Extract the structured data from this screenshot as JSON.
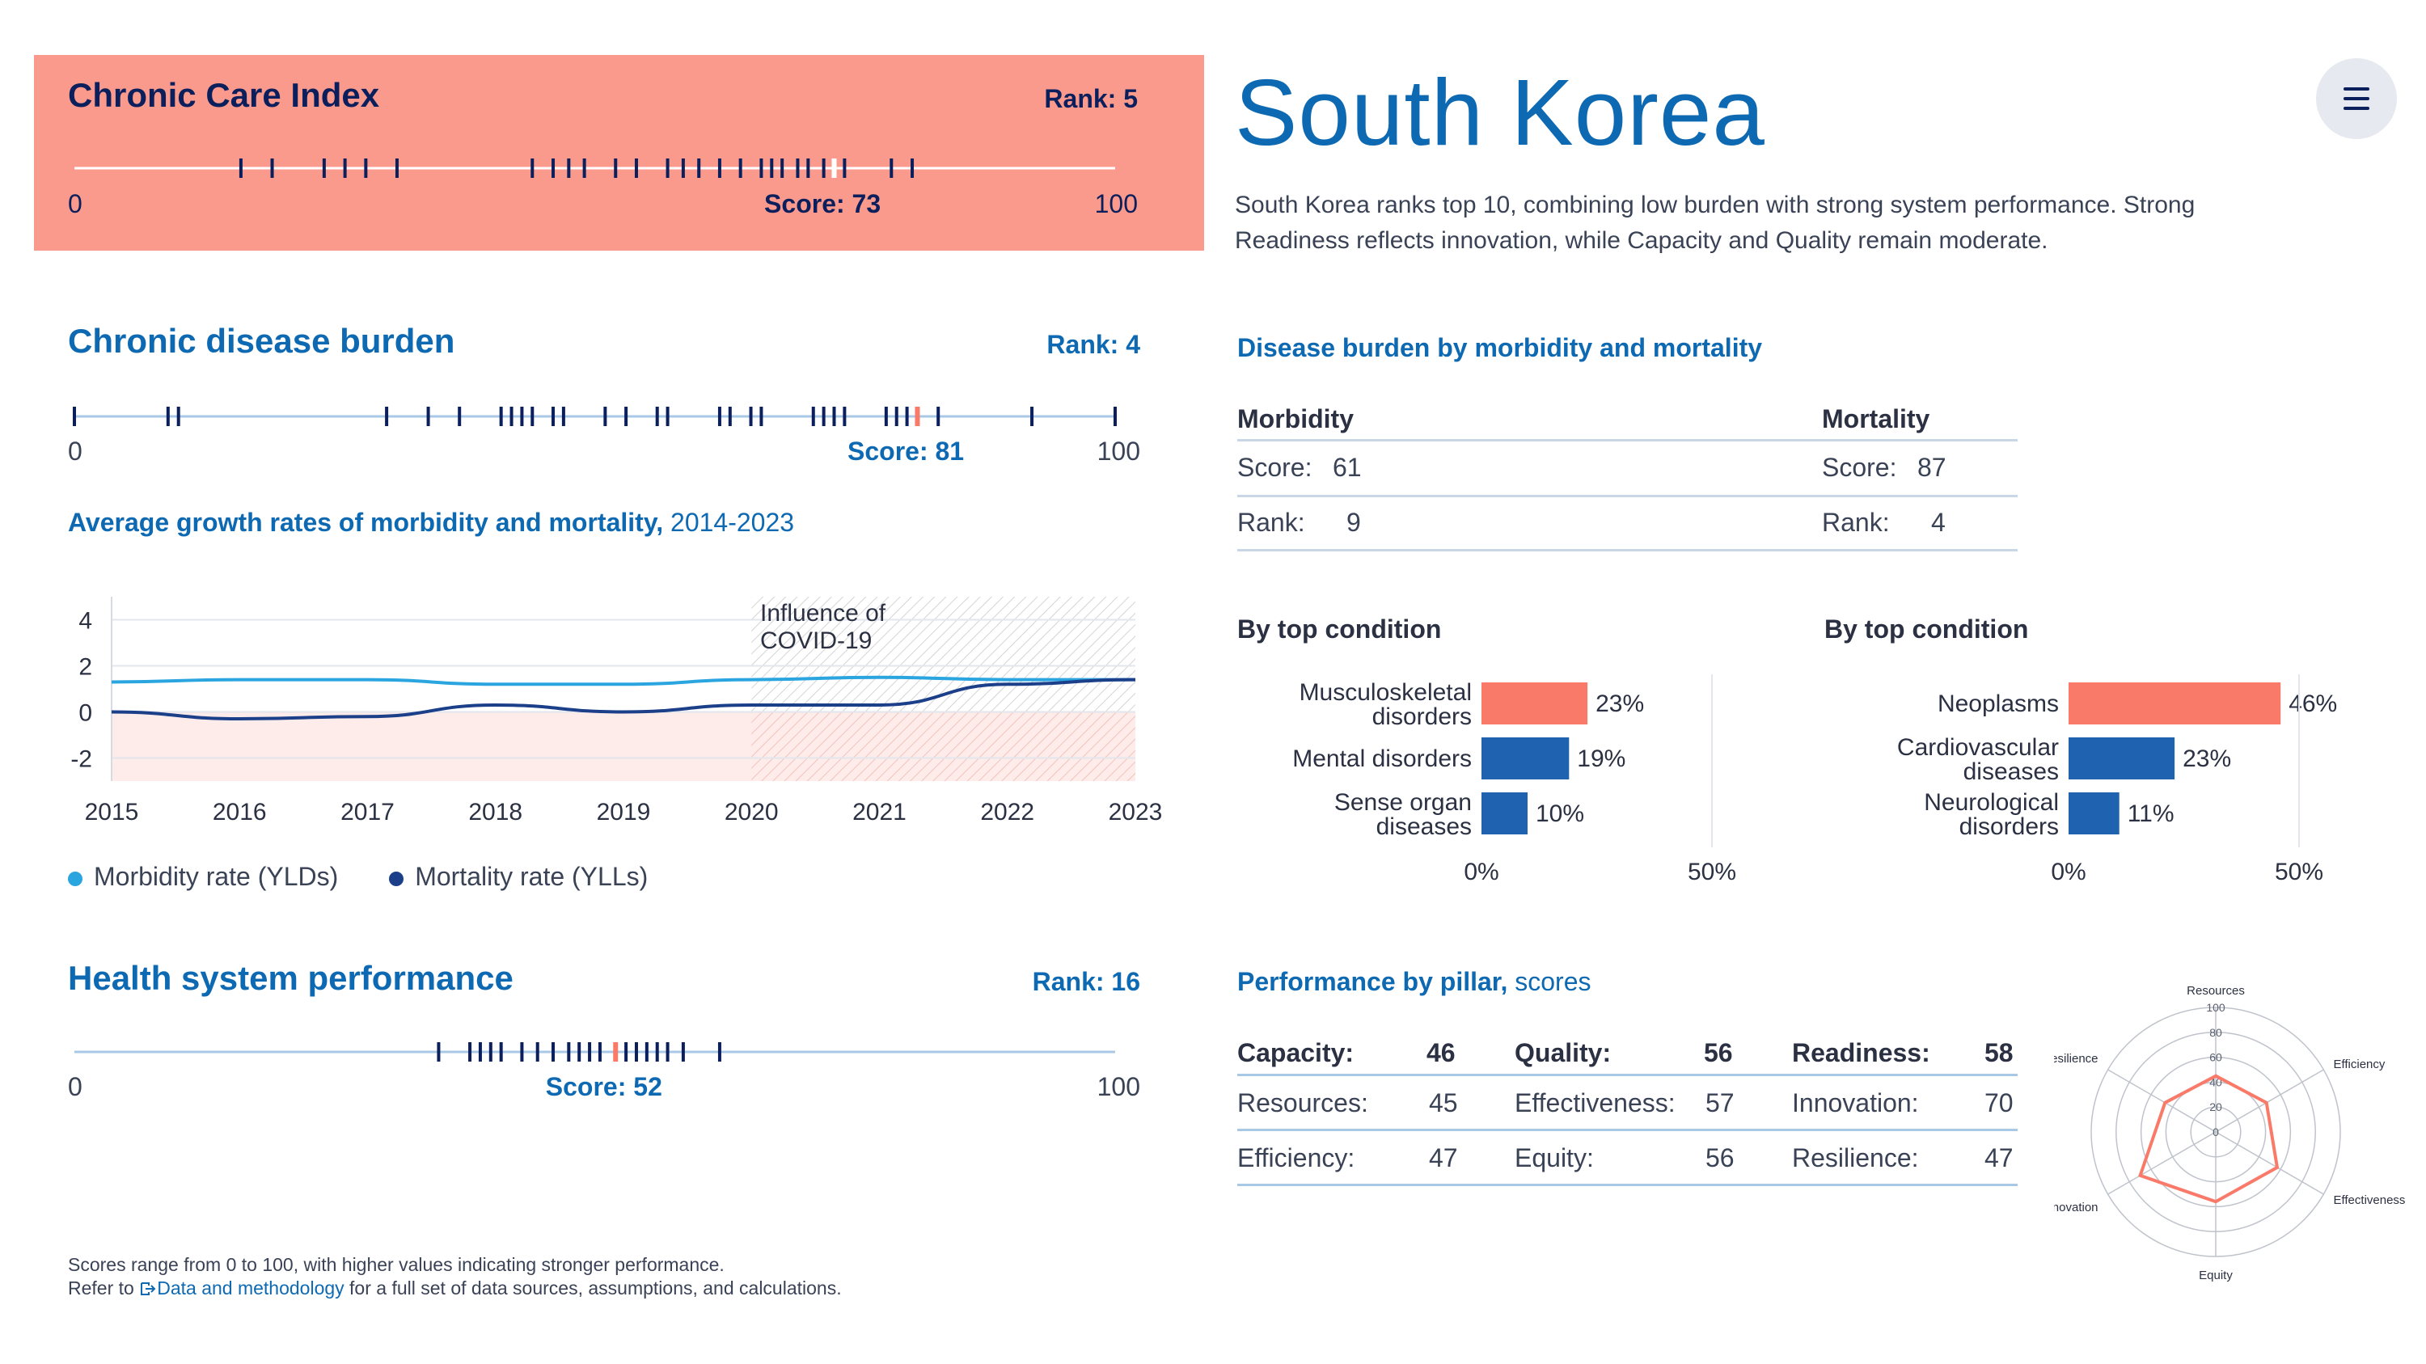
{
  "colors": {
    "accent_blue": "#0e69b3",
    "navy": "#0b1f5c",
    "coral": "#fa7a6a",
    "header_bg": "#fa9a8c",
    "morbidity_line": "#2aa5e0",
    "mortality_line": "#1c3f8a",
    "bar_blue": "#1f63b0"
  },
  "country": "South Korea",
  "summary": "South Korea ranks top 10, combining low burden with strong system performance. Strong Readiness reflects innovation, while Capacity and Quality remain moderate.",
  "menu": {
    "icon": "hamburger-menu-icon"
  },
  "cci": {
    "title": "Chronic Care Index",
    "rank": "Rank: 5",
    "score_label": "Score: 73",
    "score": 73,
    "min": "0",
    "max": "100",
    "others": [
      16,
      19,
      24,
      26,
      28,
      31,
      44,
      46,
      47.5,
      49,
      52,
      54,
      57,
      58.5,
      60,
      62,
      64,
      66,
      67,
      68,
      69.5,
      70.5,
      72,
      74,
      78.5,
      80.5
    ]
  },
  "burden": {
    "title": "Chronic disease burden",
    "rank": "Rank: 4",
    "score_label": "Score: 81",
    "score": 81,
    "min": "0",
    "max": "100",
    "others": [
      0,
      9,
      10,
      30,
      34,
      37,
      41,
      42,
      43,
      44,
      46,
      47,
      51,
      53,
      56,
      57,
      62,
      63,
      65,
      66,
      71,
      72,
      73,
      74,
      78,
      79,
      80,
      83,
      92,
      100
    ]
  },
  "growth": {
    "title": "Average growth rates of morbidity and mortality,",
    "period": "2014-2023",
    "covid_label_1": "Influence of",
    "covid_label_2": "COVID-19",
    "legend_morbidity": "Morbidity rate (YLDs)",
    "legend_mortality": "Mortality rate (YLLs)"
  },
  "performance": {
    "title": "Health system performance",
    "rank": "Rank: 16",
    "score_label": "Score: 52",
    "score": 52,
    "min": "0",
    "max": "100",
    "others": [
      35,
      38,
      39,
      40,
      41,
      43,
      44.5,
      46,
      47.5,
      48.5,
      49.5,
      50.5,
      53,
      54,
      55,
      56,
      57,
      58.5,
      62
    ]
  },
  "burden_detail": {
    "title": "Disease burden by morbidity and mortality",
    "morbidity": {
      "header": "Morbidity",
      "score_label": "Score:",
      "score": "61",
      "rank_label": "Rank:",
      "rank": "9"
    },
    "mortality": {
      "header": "Mortality",
      "score_label": "Score:",
      "score": "87",
      "rank_label": "Rank:",
      "rank": "4"
    }
  },
  "conditions_left": {
    "title": "By top condition",
    "axis_min": "0%",
    "axis_max": "50%",
    "items": [
      {
        "line1": "Musculoskeletal",
        "line2": "disorders",
        "value": 23,
        "label": "23%",
        "highlight": true
      },
      {
        "line1": "Mental disorders",
        "line2": "",
        "value": 19,
        "label": "19%",
        "highlight": false
      },
      {
        "line1": "Sense organ",
        "line2": "diseases",
        "value": 10,
        "label": "10%",
        "highlight": false
      }
    ]
  },
  "conditions_right": {
    "title": "By top condition",
    "axis_min": "0%",
    "axis_max": "50%",
    "items": [
      {
        "line1": "Neoplasms",
        "line2": "",
        "value": 46,
        "label": "46%",
        "highlight": true
      },
      {
        "line1": "Cardiovascular",
        "line2": "diseases",
        "value": 23,
        "label": "23%",
        "highlight": false
      },
      {
        "line1": "Neurological",
        "line2": "disorders",
        "value": 11,
        "label": "11%",
        "highlight": false
      }
    ]
  },
  "pillars": {
    "title": "Performance by pillar,",
    "title_light": "scores",
    "capacity": {
      "label": "Capacity:",
      "value": "46"
    },
    "quality": {
      "label": "Quality:",
      "value": "56"
    },
    "readiness": {
      "label": "Readiness:",
      "value": "58"
    },
    "resources": {
      "label": "Resources:",
      "value": "45"
    },
    "effectiveness": {
      "label": "Effectiveness:",
      "value": "57"
    },
    "innovation": {
      "label": "Innovation:",
      "value": "70"
    },
    "efficiency": {
      "label": "Efficiency:",
      "value": "47"
    },
    "equity": {
      "label": "Equity:",
      "value": "56"
    },
    "resilience": {
      "label": "Resilience:",
      "value": "47"
    }
  },
  "radar_ticks": [
    "100",
    "80",
    "60",
    "40",
    "20",
    "0"
  ],
  "footer": {
    "line1": "Scores range from 0 to 100, with higher values indicating stronger performance.",
    "line2_pre": "Refer to",
    "link_icon": "external-link-icon",
    "link": "Data and methodology",
    "line2_post": "for a full set of data sources, assumptions, and calculations."
  },
  "chart_data": [
    {
      "type": "line",
      "title": "Average growth rates of morbidity and mortality, 2014-2023",
      "x": [
        2015,
        2016,
        2017,
        2018,
        2019,
        2020,
        2021,
        2022,
        2023
      ],
      "ylim": [
        -3,
        5
      ],
      "yticks": [
        4,
        2,
        0,
        -2
      ],
      "annotation": "Influence of COVID-19",
      "annotation_range": [
        2020,
        2023
      ],
      "series": [
        {
          "name": "Morbidity rate (YLDs)",
          "values": [
            1.3,
            1.4,
            1.4,
            1.2,
            1.2,
            1.4,
            1.5,
            1.4,
            1.4
          ]
        },
        {
          "name": "Mortality rate (YLLs)",
          "values": [
            0.0,
            -0.3,
            -0.2,
            0.3,
            0.0,
            0.3,
            0.3,
            1.2,
            1.4
          ]
        }
      ]
    },
    {
      "type": "bar",
      "title": "By top condition",
      "categories": [
        "Musculoskeletal disorders",
        "Mental disorders",
        "Sense organ diseases"
      ],
      "values": [
        23,
        19,
        10
      ],
      "xlim": [
        0,
        50
      ]
    },
    {
      "type": "bar",
      "title": "By top condition",
      "categories": [
        "Neoplasms",
        "Cardiovascular diseases",
        "Neurological disorders"
      ],
      "values": [
        46,
        23,
        11
      ],
      "xlim": [
        0,
        50
      ]
    },
    {
      "type": "radar",
      "axes": [
        "Resources",
        "Efficiency",
        "Effectiveness",
        "Equity",
        "Innovation",
        "Resilience"
      ],
      "values": [
        45,
        47,
        57,
        56,
        70,
        47
      ],
      "rlim": [
        0,
        100
      ],
      "rticks": [
        20,
        40,
        60,
        80,
        100
      ]
    }
  ]
}
